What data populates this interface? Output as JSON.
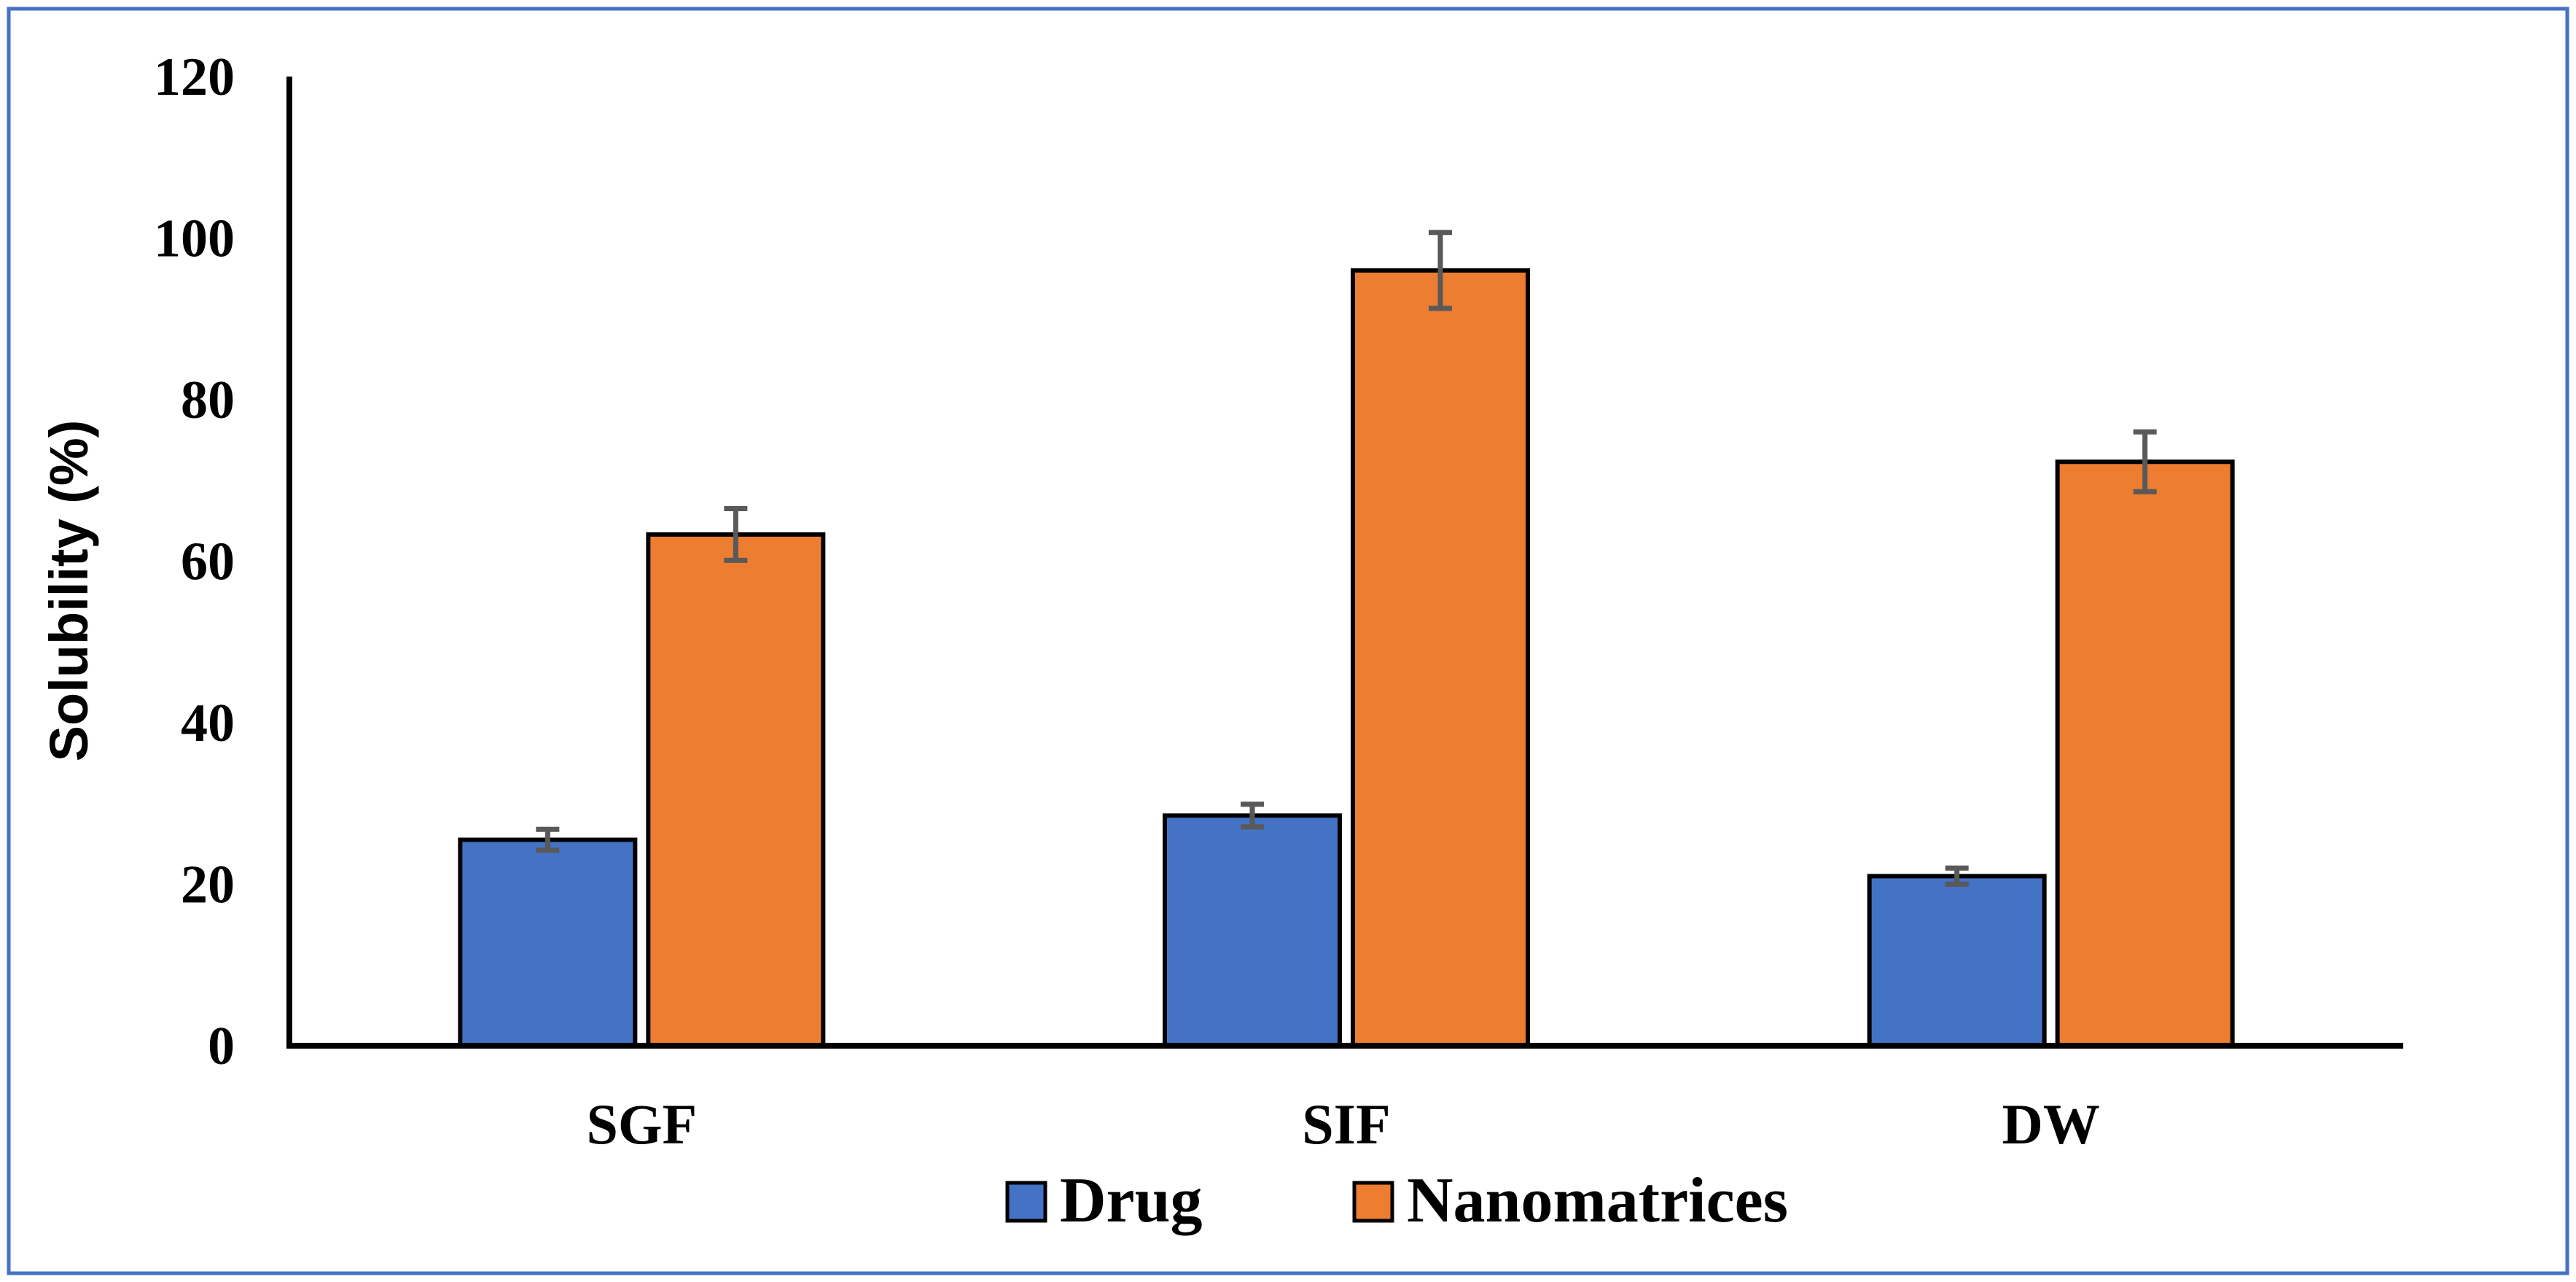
{
  "chart_data": {
    "type": "bar",
    "title": "",
    "xlabel": "",
    "ylabel": "Solubility (%)",
    "ylim": [
      0,
      120
    ],
    "yticks": [
      0,
      20,
      40,
      60,
      80,
      100,
      120
    ],
    "categories": [
      "SGF",
      "SIF",
      "DW"
    ],
    "series": [
      {
        "name": "Drug",
        "color": "#4472C4",
        "values": [
          25.5,
          28.5,
          21.0
        ],
        "errors": [
          1.3,
          1.4,
          1.0
        ]
      },
      {
        "name": "Nanomatrices",
        "color": "#ED7D31",
        "values": [
          63.3,
          96.0,
          72.3
        ],
        "errors": [
          3.2,
          4.7,
          3.7
        ]
      }
    ],
    "grid": false,
    "error_bar_color": "#595959",
    "legend_position": "bottom-center",
    "frame_color": "#4472C4"
  }
}
